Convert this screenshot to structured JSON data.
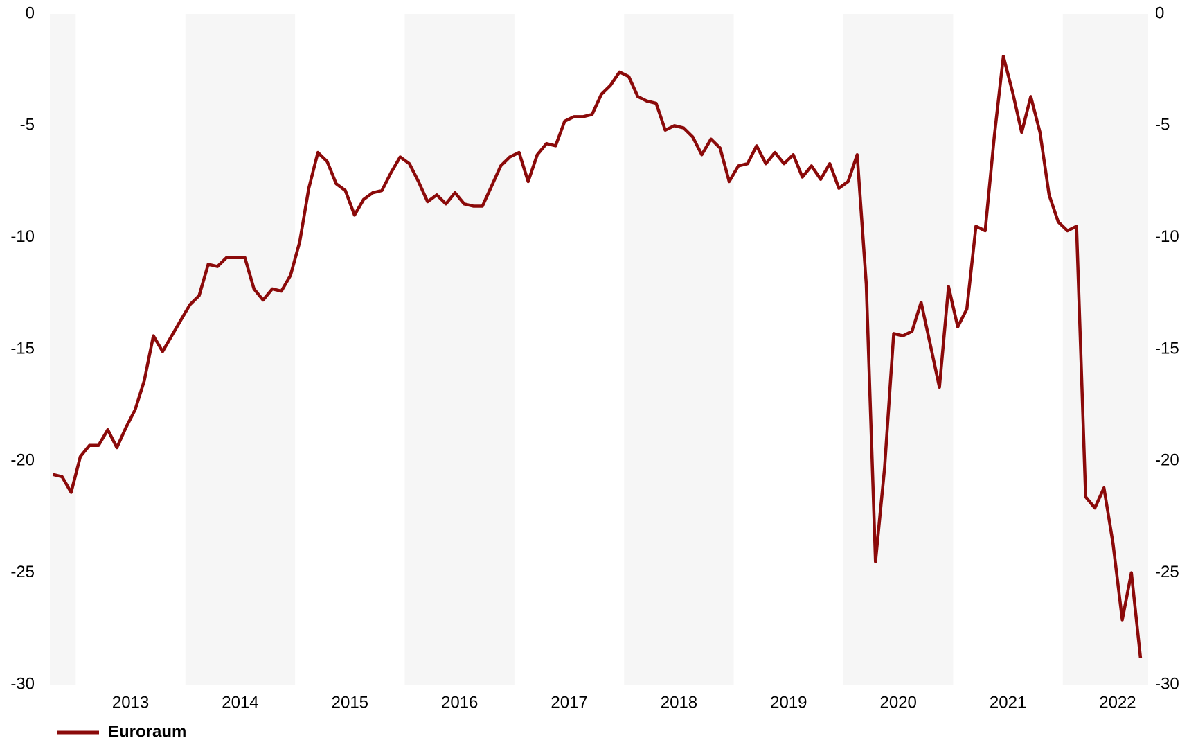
{
  "chart_data": {
    "type": "line",
    "x": [
      2012.792,
      2012.875,
      2012.958,
      2013.042,
      2013.125,
      2013.208,
      2013.292,
      2013.375,
      2013.458,
      2013.542,
      2013.625,
      2013.708,
      2013.792,
      2013.875,
      2013.958,
      2014.042,
      2014.125,
      2014.208,
      2014.292,
      2014.375,
      2014.458,
      2014.542,
      2014.625,
      2014.708,
      2014.792,
      2014.875,
      2014.958,
      2015.042,
      2015.125,
      2015.208,
      2015.292,
      2015.375,
      2015.458,
      2015.542,
      2015.625,
      2015.708,
      2015.792,
      2015.875,
      2015.958,
      2016.042,
      2016.125,
      2016.208,
      2016.292,
      2016.375,
      2016.458,
      2016.542,
      2016.625,
      2016.708,
      2016.792,
      2016.875,
      2016.958,
      2017.042,
      2017.125,
      2017.208,
      2017.292,
      2017.375,
      2017.458,
      2017.542,
      2017.625,
      2017.708,
      2017.792,
      2017.875,
      2017.958,
      2018.042,
      2018.125,
      2018.208,
      2018.292,
      2018.375,
      2018.458,
      2018.542,
      2018.625,
      2018.708,
      2018.792,
      2018.875,
      2018.958,
      2019.042,
      2019.125,
      2019.208,
      2019.292,
      2019.375,
      2019.458,
      2019.542,
      2019.625,
      2019.708,
      2019.792,
      2019.875,
      2019.958,
      2020.042,
      2020.125,
      2020.208,
      2020.292,
      2020.375,
      2020.458,
      2020.542,
      2020.625,
      2020.708,
      2020.792,
      2020.875,
      2020.958,
      2021.042,
      2021.125,
      2021.208,
      2021.292,
      2021.375,
      2021.458,
      2021.542,
      2021.625,
      2021.708,
      2021.792,
      2021.875,
      2021.958,
      2022.042,
      2022.125,
      2022.208,
      2022.292,
      2022.375,
      2022.458,
      2022.542,
      2022.625,
      2022.708
    ],
    "series": [
      {
        "name": "Euroraum",
        "color": "#8b0a0a",
        "values": [
          -20.6,
          -20.7,
          -21.4,
          -19.8,
          -19.3,
          -19.3,
          -18.6,
          -19.4,
          -18.5,
          -17.7,
          -16.4,
          -14.4,
          -15.1,
          -14.4,
          -13.7,
          -13.0,
          -12.6,
          -11.2,
          -11.3,
          -10.9,
          -10.9,
          -10.9,
          -12.3,
          -12.8,
          -12.3,
          -12.4,
          -11.7,
          -10.2,
          -7.8,
          -6.2,
          -6.6,
          -7.6,
          -7.9,
          -9.0,
          -8.3,
          -8.0,
          -7.9,
          -7.1,
          -6.4,
          -6.7,
          -7.5,
          -8.4,
          -8.1,
          -8.5,
          -8.0,
          -8.5,
          -8.6,
          -8.6,
          -7.7,
          -6.8,
          -6.4,
          -6.2,
          -7.5,
          -6.3,
          -5.8,
          -5.9,
          -4.8,
          -4.6,
          -4.6,
          -4.5,
          -3.6,
          -3.2,
          -2.6,
          -2.8,
          -3.7,
          -3.9,
          -4.0,
          -5.2,
          -5.0,
          -5.1,
          -5.5,
          -6.3,
          -5.6,
          -6.0,
          -7.5,
          -6.8,
          -6.7,
          -5.9,
          -6.7,
          -6.2,
          -6.7,
          -6.3,
          -7.3,
          -6.8,
          -7.4,
          -6.7,
          -7.8,
          -7.5,
          -6.3,
          -12.1,
          -24.5,
          -20.3,
          -14.3,
          -14.4,
          -14.2,
          -12.9,
          -14.8,
          -16.7,
          -12.2,
          -14.0,
          -13.2,
          -9.5,
          -9.7,
          -5.5,
          -1.9,
          -3.5,
          -5.3,
          -3.7,
          -5.3,
          -8.1,
          -9.3,
          -9.7,
          -9.5,
          -21.6,
          -22.1,
          -21.2,
          -23.7,
          -27.1,
          -25.0,
          -28.8
        ]
      }
    ],
    "xlim": [
      2012.764,
      2022.778
    ],
    "xticks": [
      {
        "value": 2013.5,
        "label": "2013"
      },
      {
        "value": 2014.5,
        "label": "2014"
      },
      {
        "value": 2015.5,
        "label": "2015"
      },
      {
        "value": 2016.5,
        "label": "2016"
      },
      {
        "value": 2017.5,
        "label": "2017"
      },
      {
        "value": 2018.5,
        "label": "2018"
      },
      {
        "value": 2019.5,
        "label": "2019"
      },
      {
        "value": 2020.5,
        "label": "2020"
      },
      {
        "value": 2021.5,
        "label": "2021"
      },
      {
        "value": 2022.5,
        "label": "2022"
      }
    ],
    "ylim": [
      -30,
      0
    ],
    "yticks": [
      0,
      -5,
      -10,
      -15,
      -20,
      -25,
      -30
    ],
    "y2lim": [
      -30,
      0
    ],
    "y2ticks": [
      0,
      -5,
      -10,
      -15,
      -20,
      -25,
      -30
    ],
    "grid": false,
    "legend": "bottom-left"
  }
}
